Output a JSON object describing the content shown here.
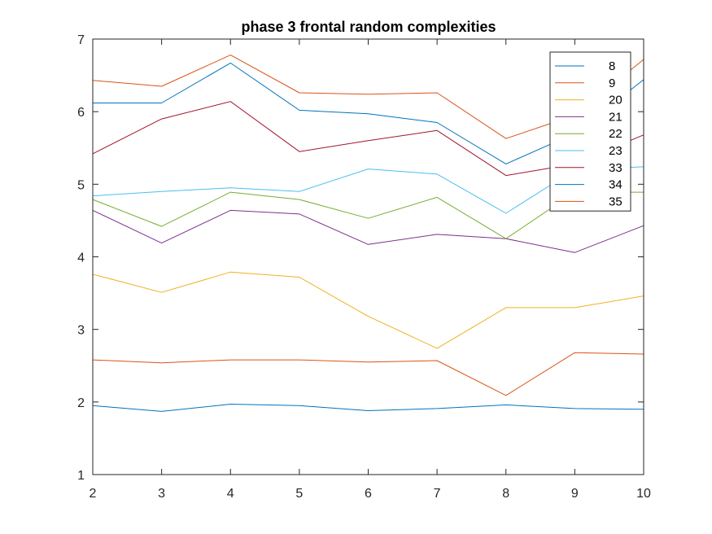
{
  "chart_data": {
    "type": "line",
    "title": "phase 3 frontal random complexities",
    "xlabel": "",
    "ylabel": "",
    "xlim": [
      2,
      10
    ],
    "ylim": [
      1,
      7
    ],
    "x": [
      2,
      3,
      4,
      5,
      6,
      7,
      8,
      9,
      10
    ],
    "xticks": [
      "2",
      "3",
      "4",
      "5",
      "6",
      "7",
      "8",
      "9",
      "10"
    ],
    "yticks": [
      "1",
      "2",
      "3",
      "4",
      "5",
      "6",
      "7"
    ],
    "grid": false,
    "legend_position": "top-right",
    "series": [
      {
        "name": "8",
        "color": "#0072BD",
        "values": [
          1.95,
          1.87,
          1.97,
          1.95,
          1.88,
          1.91,
          1.96,
          1.91,
          1.9
        ]
      },
      {
        "name": "9",
        "color": "#D95319",
        "values": [
          2.58,
          2.54,
          2.58,
          2.58,
          2.55,
          2.57,
          2.09,
          2.68,
          2.66
        ]
      },
      {
        "name": "20",
        "color": "#EDB120",
        "values": [
          3.76,
          3.51,
          3.79,
          3.72,
          3.18,
          2.74,
          3.3,
          3.3,
          3.46
        ]
      },
      {
        "name": "21",
        "color": "#7E2F8E",
        "values": [
          4.64,
          4.19,
          4.64,
          4.59,
          4.17,
          4.31,
          4.25,
          4.06,
          4.43
        ]
      },
      {
        "name": "22",
        "color": "#77AC30",
        "values": [
          4.79,
          4.42,
          4.89,
          4.79,
          4.53,
          4.82,
          4.25,
          4.89,
          4.89
        ]
      },
      {
        "name": "23",
        "color": "#4DBEEE",
        "values": [
          4.84,
          4.9,
          4.95,
          4.9,
          5.21,
          5.14,
          4.6,
          5.2,
          5.24
        ]
      },
      {
        "name": "33",
        "color": "#A2142F",
        "values": [
          5.42,
          5.9,
          6.14,
          5.45,
          5.6,
          5.74,
          5.12,
          5.28,
          5.68
        ]
      },
      {
        "name": "34",
        "color": "#0072BD",
        "values": [
          6.12,
          6.12,
          6.67,
          6.02,
          5.97,
          5.85,
          5.28,
          5.7,
          6.44
        ]
      },
      {
        "name": "35",
        "color": "#D95319",
        "values": [
          6.43,
          6.35,
          6.78,
          6.26,
          6.24,
          6.26,
          5.63,
          5.95,
          6.72
        ]
      }
    ]
  }
}
